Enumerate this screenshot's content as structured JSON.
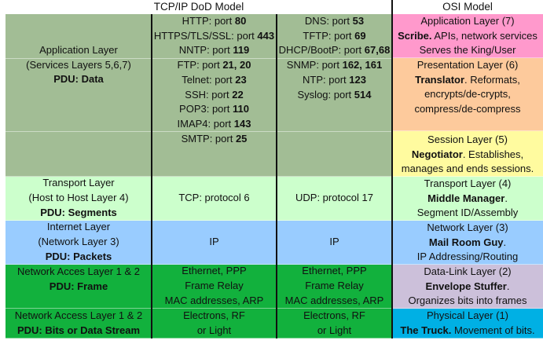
{
  "headers": {
    "tcpip": "TCP/IP DoD Model",
    "osi": "OSI Model"
  },
  "colors": {
    "app_tcpip": "#a2bd95",
    "application": "#ff99cc",
    "presentation": "#fdca9c",
    "session": "#fffb9f",
    "transport": "#ccffcc",
    "internet": "#99ccff",
    "network_access": "#12b13d",
    "datalink": "#ccc0da",
    "physical": "#00b0e4"
  },
  "tcpip": {
    "application": {
      "layer": [
        [
          {
            "t": "Application Layer"
          }
        ],
        [
          {
            "t": "(Services Layers 5,6,7)"
          }
        ],
        [
          {
            "t": "PDU: Data",
            "b": true
          }
        ]
      ],
      "col_a": [
        [
          {
            "t": "HTTP: port "
          },
          {
            "t": "80",
            "b": true
          }
        ],
        [
          {
            "t": "HTTPS/TLS/SSL: port "
          },
          {
            "t": "443",
            "b": true
          }
        ],
        [
          {
            "t": "NNTP: port "
          },
          {
            "t": "119",
            "b": true
          }
        ],
        [
          {
            "t": "FTP: port "
          },
          {
            "t": "21, 20",
            "b": true
          }
        ],
        [
          {
            "t": "Telnet: port "
          },
          {
            "t": "23",
            "b": true
          }
        ],
        [
          {
            "t": "SSH: port "
          },
          {
            "t": "22",
            "b": true
          }
        ],
        [
          {
            "t": "POP3: port "
          },
          {
            "t": "110",
            "b": true
          }
        ],
        [
          {
            "t": "IMAP4: port "
          },
          {
            "t": "143",
            "b": true
          }
        ],
        [
          {
            "t": "SMTP: port "
          },
          {
            "t": "25",
            "b": true
          }
        ]
      ],
      "col_b": [
        [
          {
            "t": "DNS: port "
          },
          {
            "t": "53",
            "b": true
          }
        ],
        [
          {
            "t": "TFTP: port "
          },
          {
            "t": "69",
            "b": true
          }
        ],
        [
          {
            "t": "DHCP/BootP: port "
          },
          {
            "t": "67,68",
            "b": true
          }
        ],
        [
          {
            "t": "SNMP: port "
          },
          {
            "t": "162, 161",
            "b": true
          }
        ],
        [
          {
            "t": "NTP: port "
          },
          {
            "t": "123",
            "b": true
          }
        ],
        [
          {
            "t": "Syslog: port "
          },
          {
            "t": "514",
            "b": true
          }
        ]
      ]
    },
    "transport": {
      "layer": [
        [
          {
            "t": "Transport Layer"
          }
        ],
        [
          {
            "t": "(Host to Host Layer 4)"
          }
        ],
        [
          {
            "t": "PDU: Segments",
            "b": true
          }
        ]
      ],
      "col_a": [
        [
          {
            "t": "TCP: protocol 6"
          }
        ]
      ],
      "col_b": [
        [
          {
            "t": "UDP: protocol 17"
          }
        ]
      ]
    },
    "internet": {
      "layer": [
        [
          {
            "t": "Internet Layer"
          }
        ],
        [
          {
            "t": "(Network Layer 3)"
          }
        ],
        [
          {
            "t": "PDU: Packets",
            "b": true
          }
        ]
      ],
      "col_a": [
        [
          {
            "t": "IP"
          }
        ]
      ],
      "col_b": [
        [
          {
            "t": "IP"
          }
        ]
      ]
    },
    "network_access": {
      "layer": [
        [
          {
            "t": "Network Acces Layer 1 & 2"
          }
        ],
        [
          {
            "t": "PDU: Frame",
            "b": true
          }
        ]
      ],
      "col_a": [
        [
          {
            "t": "Ethernet, PPP"
          }
        ],
        [
          {
            "t": "Frame Relay"
          }
        ],
        [
          {
            "t": "MAC addresses, ARP"
          }
        ]
      ],
      "col_b": [
        [
          {
            "t": "Ethernet, PPP"
          }
        ],
        [
          {
            "t": "Frame Relay"
          }
        ],
        [
          {
            "t": "MAC addresses, ARP"
          }
        ]
      ]
    },
    "physical": {
      "layer": [
        [
          {
            "t": "Network Access Layer 1 & 2"
          }
        ],
        [
          {
            "t": "PDU: Bits or Data Stream",
            "b": true
          }
        ]
      ],
      "col_a": [
        [
          {
            "t": "Electrons, RF"
          }
        ],
        [
          {
            "t": "or Light"
          }
        ]
      ],
      "col_b": [
        [
          {
            "t": "Electrons, RF"
          }
        ],
        [
          {
            "t": "or Light"
          }
        ]
      ]
    }
  },
  "osi": {
    "application": [
      [
        {
          "t": "Application Layer (7)"
        }
      ],
      [
        {
          "t": "Scribe.",
          "b": true
        },
        {
          "t": "  APIs, network services"
        }
      ],
      [
        {
          "t": "Serves the King/User"
        }
      ]
    ],
    "presentation": [
      [
        {
          "t": "Presentation Layer (6)"
        }
      ],
      [
        {
          "t": "Translator",
          "b": true
        },
        {
          "t": ".  Reformats,"
        }
      ],
      [
        {
          "t": "encrypts/de-crypts,"
        }
      ],
      [
        {
          "t": "compress/de-compress"
        }
      ]
    ],
    "session": [
      [
        {
          "t": "Session Layer (5)"
        }
      ],
      [
        {
          "t": "Negotiator",
          "b": true
        },
        {
          "t": ".  Establishes,"
        }
      ],
      [
        {
          "t": "manages and ends sessions."
        }
      ]
    ],
    "transport": [
      [
        {
          "t": "Transport Layer (4)"
        }
      ],
      [
        {
          "t": "Middle Manager",
          "b": true
        },
        {
          "t": "."
        }
      ],
      [
        {
          "t": "Segment ID/Assembly"
        }
      ]
    ],
    "network": [
      [
        {
          "t": "Network Layer (3)"
        }
      ],
      [
        {
          "t": "Mail Room Guy",
          "b": true
        },
        {
          "t": "."
        }
      ],
      [
        {
          "t": "IP Addressing/Routing"
        }
      ]
    ],
    "datalink": [
      [
        {
          "t": "Data-Link Layer (2)"
        }
      ],
      [
        {
          "t": "Envelope Stuffer",
          "b": true
        },
        {
          "t": "."
        }
      ],
      [
        {
          "t": "Organizes bits into frames"
        }
      ]
    ],
    "physical": [
      [
        {
          "t": "Physical Layer (1)"
        }
      ],
      [
        {
          "t": "The Truck.",
          "b": true
        },
        {
          "t": "   Movement of bits."
        }
      ]
    ]
  }
}
